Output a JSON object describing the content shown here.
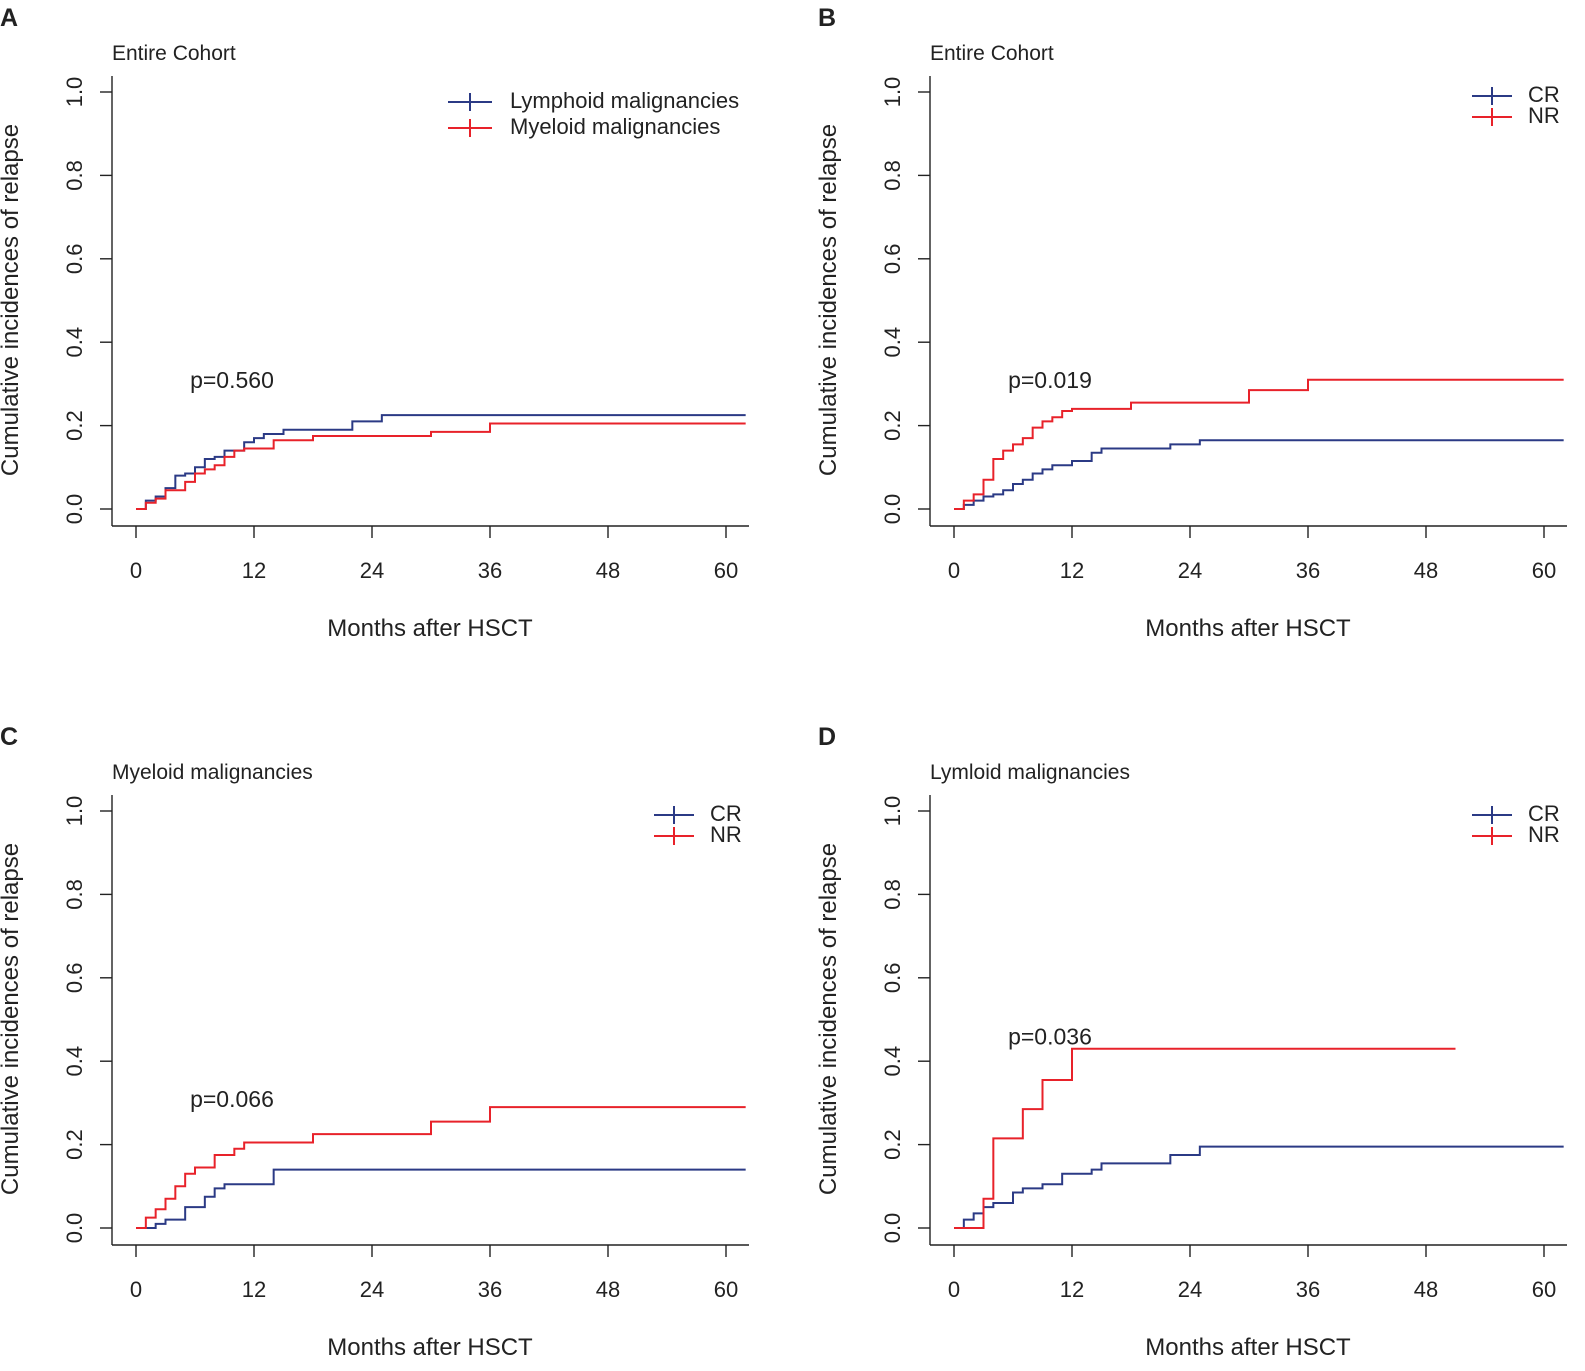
{
  "figure": {
    "colors": {
      "CR": "#2b3a85",
      "NR": "#e8222a",
      "Lymphoid": "#2b3a85",
      "Myeloid": "#e8222a",
      "axis": "#222222"
    }
  },
  "chart_data": [
    {
      "id": "A",
      "type": "line",
      "step": true,
      "panel_letter": "A",
      "title": "Entire Cohort",
      "xlabel": "Months after HSCT",
      "ylabel": "Cumulative incidences of relapse",
      "xlim": [
        0,
        62
      ],
      "ylim": [
        0,
        1.0
      ],
      "xticks": [
        0,
        12,
        24,
        36,
        48,
        60
      ],
      "yticks": [
        "0.0",
        "0.2",
        "0.4",
        "0.6",
        "0.8",
        "1.0"
      ],
      "legend_position": "top-right",
      "p_value": "p=0.560",
      "p_value_at": [
        5.5,
        0.29
      ],
      "series": [
        {
          "name": "Lymphoid malignancies",
          "color": "#2b3a85",
          "x": [
            0,
            1,
            2,
            3,
            4,
            5,
            6,
            7,
            8,
            9,
            11,
            12,
            13,
            15,
            22,
            25,
            62
          ],
          "y": [
            0,
            0.02,
            0.03,
            0.05,
            0.08,
            0.085,
            0.1,
            0.12,
            0.125,
            0.14,
            0.16,
            0.17,
            0.18,
            0.19,
            0.21,
            0.225,
            0.225
          ]
        },
        {
          "name": "Myeloid malignancies",
          "color": "#e8222a",
          "x": [
            0,
            1,
            2,
            3,
            5,
            6,
            7,
            8,
            9,
            10,
            11,
            14,
            18,
            30,
            36,
            62
          ],
          "y": [
            0,
            0.015,
            0.025,
            0.045,
            0.065,
            0.085,
            0.095,
            0.105,
            0.125,
            0.14,
            0.145,
            0.165,
            0.175,
            0.185,
            0.205,
            0.205
          ]
        }
      ]
    },
    {
      "id": "B",
      "type": "line",
      "step": true,
      "panel_letter": "B",
      "title": "Entire Cohort",
      "xlabel": "Months after HSCT",
      "ylabel": "Cumulative incidences of relapse",
      "xlim": [
        0,
        62
      ],
      "ylim": [
        0,
        1.0
      ],
      "xticks": [
        0,
        12,
        24,
        36,
        48,
        60
      ],
      "yticks": [
        "0.0",
        "0.2",
        "0.4",
        "0.6",
        "0.8",
        "1.0"
      ],
      "legend_position": "top-right",
      "p_value": "p=0.019",
      "p_value_at": [
        5.5,
        0.29
      ],
      "series": [
        {
          "name": "CR",
          "color": "#2b3a85",
          "x": [
            0,
            1,
            2,
            3,
            4,
            5,
            6,
            7,
            8,
            9,
            10,
            12,
            14,
            15,
            22,
            25,
            62
          ],
          "y": [
            0,
            0.01,
            0.02,
            0.03,
            0.035,
            0.045,
            0.06,
            0.07,
            0.085,
            0.095,
            0.105,
            0.115,
            0.135,
            0.145,
            0.155,
            0.165,
            0.165
          ]
        },
        {
          "name": "NR",
          "color": "#e8222a",
          "x": [
            0,
            1,
            2,
            3,
            4,
            5,
            6,
            7,
            8,
            9,
            10,
            11,
            12,
            18,
            30,
            36,
            62
          ],
          "y": [
            0,
            0.02,
            0.035,
            0.07,
            0.12,
            0.14,
            0.155,
            0.17,
            0.195,
            0.21,
            0.22,
            0.235,
            0.24,
            0.255,
            0.285,
            0.31,
            0.31
          ]
        }
      ]
    },
    {
      "id": "C",
      "type": "line",
      "step": true,
      "panel_letter": "C",
      "title": "Myeloid malignancies",
      "xlabel": "Months after HSCT",
      "ylabel": "Cumulative incidences of relapse",
      "xlim": [
        0,
        62
      ],
      "ylim": [
        0,
        1.0
      ],
      "xticks": [
        0,
        12,
        24,
        36,
        48,
        60
      ],
      "yticks": [
        "0.0",
        "0.2",
        "0.4",
        "0.6",
        "0.8",
        "1.0"
      ],
      "legend_position": "top-right",
      "p_value": "p=0.066",
      "p_value_at": [
        5.5,
        0.29
      ],
      "series": [
        {
          "name": "CR",
          "color": "#2b3a85",
          "x": [
            0,
            2,
            3,
            5,
            7,
            8,
            9,
            14,
            62
          ],
          "y": [
            0,
            0.01,
            0.02,
            0.05,
            0.075,
            0.095,
            0.105,
            0.14,
            0.14
          ]
        },
        {
          "name": "NR",
          "color": "#e8222a",
          "x": [
            0,
            1,
            2,
            3,
            4,
            5,
            6,
            8,
            10,
            11,
            18,
            30,
            36,
            62
          ],
          "y": [
            0,
            0.025,
            0.045,
            0.07,
            0.1,
            0.13,
            0.145,
            0.175,
            0.19,
            0.205,
            0.225,
            0.255,
            0.29,
            0.29
          ]
        }
      ]
    },
    {
      "id": "D",
      "type": "line",
      "step": true,
      "panel_letter": "D",
      "title": "Lymloid malignancies",
      "xlabel": "Months after HSCT",
      "ylabel": "Cumulative incidences of relapse",
      "xlim": [
        0,
        62
      ],
      "ylim": [
        0,
        1.0
      ],
      "xticks": [
        0,
        12,
        24,
        36,
        48,
        60
      ],
      "yticks": [
        "0.0",
        "0.2",
        "0.4",
        "0.6",
        "0.8",
        "1.0"
      ],
      "legend_position": "top-right",
      "p_value": "p=0.036",
      "p_value_at": [
        5.5,
        0.44
      ],
      "series": [
        {
          "name": "CR",
          "color": "#2b3a85",
          "x": [
            0,
            1,
            2,
            3,
            4,
            6,
            7,
            9,
            11,
            14,
            15,
            22,
            25,
            62
          ],
          "y": [
            0,
            0.02,
            0.035,
            0.05,
            0.06,
            0.085,
            0.095,
            0.105,
            0.13,
            0.14,
            0.155,
            0.175,
            0.195,
            0.195
          ]
        },
        {
          "name": "NR",
          "color": "#e8222a",
          "x": [
            0,
            3,
            4,
            7,
            9,
            12,
            51
          ],
          "y": [
            0,
            0.07,
            0.215,
            0.285,
            0.355,
            0.43,
            0.43
          ]
        }
      ]
    }
  ]
}
